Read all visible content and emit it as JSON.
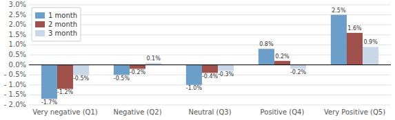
{
  "chart_data": {
    "type": "bar",
    "categories": [
      "Very negative (Q1)",
      "Negative (Q2)",
      "Neutral (Q3)",
      "Positive (Q4)",
      "Very Positive (Q5)"
    ],
    "series": [
      {
        "name": "1 month",
        "color": "#6b9ec8",
        "values": [
          -1.7,
          -0.5,
          -1.0,
          0.8,
          2.5
        ],
        "value_labels": [
          "-1.7%",
          "-0.5%",
          "-1.0%",
          "0.8%",
          "2.5%"
        ]
      },
      {
        "name": "2 month",
        "color": "#a0504a",
        "values": [
          -1.2,
          -0.2,
          -0.4,
          0.2,
          1.6
        ],
        "value_labels": [
          "-1.2%",
          "-0.2%",
          "-0.4%",
          "0.2%",
          "1.6%"
        ]
      },
      {
        "name": "3 month",
        "color": "#c8d8e8",
        "values": [
          -0.5,
          0.1,
          -0.3,
          -0.2,
          0.9
        ],
        "value_labels": [
          "-0.5%",
          "0.1%",
          "-0.3%",
          "-0.2%",
          "0.9%"
        ]
      }
    ],
    "ylim": [
      -2.0,
      3.0
    ],
    "yticks": [
      {
        "value": -2.0,
        "label": "- 2.0%"
      },
      {
        "value": -1.5,
        "label": "- 1.5%"
      },
      {
        "value": -1.0,
        "label": "- 1.0%"
      },
      {
        "value": -0.5,
        "label": "- 0.5%"
      },
      {
        "value": 0.0,
        "label": "0.0%"
      },
      {
        "value": 0.5,
        "label": "0.5%"
      },
      {
        "value": 1.0,
        "label": "1.0%"
      },
      {
        "value": 1.5,
        "label": "1.5%"
      },
      {
        "value": 2.0,
        "label": "2.0%"
      },
      {
        "value": 2.5,
        "label": "2.5%"
      },
      {
        "value": 3.0,
        "label": "3.0%"
      }
    ],
    "grid": true,
    "legend": "upper left",
    "data_labels": true
  }
}
